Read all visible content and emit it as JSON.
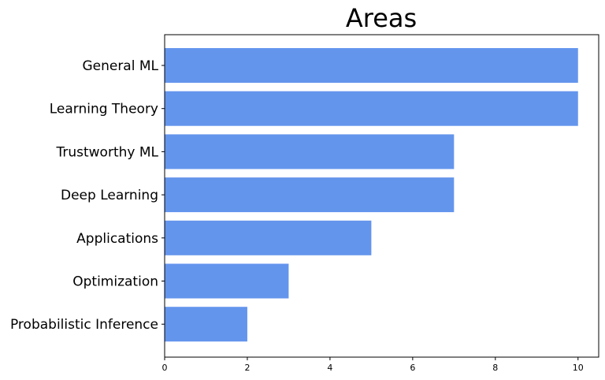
{
  "chart_data": {
    "type": "bar",
    "orientation": "horizontal",
    "title": "Areas",
    "xlabel": "",
    "ylabel": "",
    "categories": [
      "General ML",
      "Learning Theory",
      "Trustworthy ML",
      "Deep Learning",
      "Applications",
      "Optimization",
      "Probabilistic Inference"
    ],
    "values": [
      10,
      10,
      7,
      7,
      5,
      3,
      2
    ],
    "xlim": [
      0,
      10.5
    ],
    "xticks": [
      "0",
      "2",
      "4",
      "6",
      "8",
      "10"
    ],
    "bar_color": "#6495ED",
    "grid": false,
    "legend": "none"
  }
}
